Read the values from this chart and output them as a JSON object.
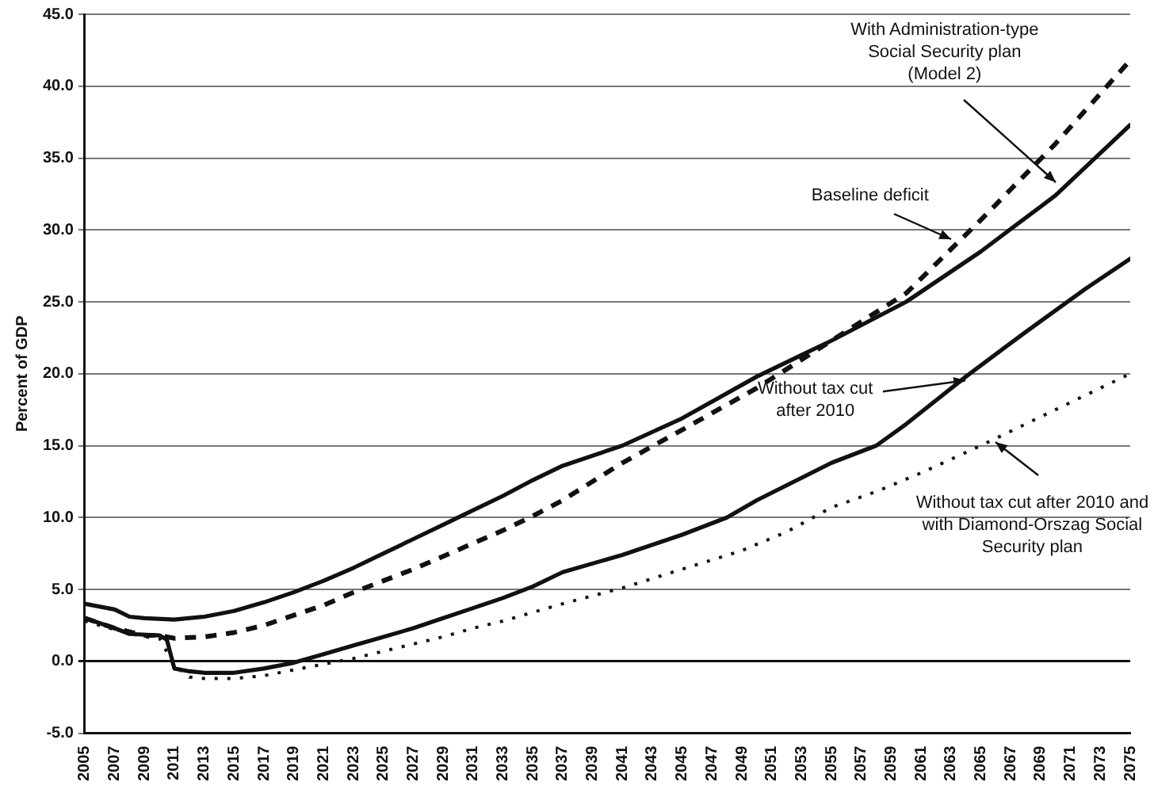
{
  "chart_data": {
    "type": "line",
    "ylabel": "Percent of GDP",
    "xlim": [
      2005,
      2075
    ],
    "xticks": [
      2005,
      2007,
      2009,
      2011,
      2013,
      2015,
      2017,
      2019,
      2021,
      2023,
      2025,
      2027,
      2029,
      2031,
      2033,
      2035,
      2037,
      2039,
      2041,
      2043,
      2045,
      2047,
      2049,
      2051,
      2053,
      2055,
      2057,
      2059,
      2061,
      2063,
      2065,
      2067,
      2069,
      2071,
      2073,
      2075
    ],
    "ylim": [
      -5,
      45
    ],
    "yticks": [
      {
        "value": -5,
        "label": "-5.0"
      },
      {
        "value": 0,
        "label": "0.0"
      },
      {
        "value": 5,
        "label": "5.0"
      },
      {
        "value": 10,
        "label": "10.0"
      },
      {
        "value": 15,
        "label": "15.0"
      },
      {
        "value": 20,
        "label": "20.0"
      },
      {
        "value": 25,
        "label": "25.0"
      },
      {
        "value": 30,
        "label": "30.0"
      },
      {
        "value": 35,
        "label": "35.0"
      },
      {
        "value": 40,
        "label": "40.0"
      },
      {
        "value": 45,
        "label": "45.0"
      }
    ],
    "grid": "y",
    "legend": false,
    "marker": "none",
    "series": [
      {
        "color": "#111111",
        "line_style": "solid",
        "x": [
          2005,
          2007,
          2008,
          2009,
          2011,
          2013,
          2015,
          2017,
          2019,
          2021,
          2023,
          2025,
          2027,
          2029,
          2031,
          2033,
          2035,
          2037,
          2041,
          2045,
          2050,
          2055,
          2060,
          2065,
          2070,
          2075
        ],
        "values": [
          4.0,
          3.6,
          3.1,
          3.0,
          2.9,
          3.1,
          3.5,
          4.1,
          4.8,
          5.6,
          6.5,
          7.5,
          8.5,
          9.5,
          10.5,
          11.5,
          12.6,
          13.6,
          15.0,
          16.9,
          19.8,
          22.3,
          25.0,
          28.5,
          32.4,
          37.3
        ]
      },
      {
        "color": "#111111",
        "line_style": "dashed",
        "x": [
          2005,
          2007,
          2009,
          2010,
          2011,
          2013,
          2015,
          2017,
          2019,
          2021,
          2023,
          2025,
          2027,
          2029,
          2031,
          2033,
          2035,
          2037,
          2041,
          2045,
          2050,
          2055,
          2060,
          2065,
          2070,
          2075
        ],
        "values": [
          3.0,
          2.3,
          1.8,
          1.8,
          1.6,
          1.7,
          2.0,
          2.5,
          3.2,
          3.9,
          4.8,
          5.6,
          6.4,
          7.3,
          8.2,
          9.1,
          10.1,
          11.2,
          13.8,
          16.1,
          19.0,
          22.3,
          25.6,
          30.7,
          36.0,
          41.8
        ]
      },
      {
        "color": "#111111",
        "line_style": "solid",
        "x": [
          2005,
          2007,
          2008,
          2010,
          2010.5,
          2011,
          2012,
          2013,
          2015,
          2017,
          2019,
          2021,
          2023,
          2025,
          2027,
          2029,
          2031,
          2033,
          2035,
          2037,
          2041,
          2045,
          2048,
          2050,
          2055,
          2058,
          2060,
          2064,
          2068,
          2072,
          2075
        ],
        "values": [
          3.0,
          2.3,
          1.9,
          1.8,
          1.5,
          -0.5,
          -0.7,
          -0.8,
          -0.8,
          -0.5,
          -0.1,
          0.5,
          1.1,
          1.7,
          2.3,
          3.0,
          3.7,
          4.4,
          5.2,
          6.2,
          7.4,
          8.8,
          10.0,
          11.2,
          13.8,
          15.0,
          16.5,
          19.8,
          22.9,
          25.9,
          28.0
        ]
      },
      {
        "color": "#111111",
        "line_style": "dotted",
        "x": [
          2005,
          2007,
          2009,
          2010,
          2011,
          2012,
          2013,
          2015,
          2017,
          2019,
          2021,
          2023,
          2025,
          2027,
          2029,
          2031,
          2033,
          2035,
          2037,
          2041,
          2049,
          2052,
          2055,
          2058,
          2061,
          2065,
          2068,
          2072,
          2075
        ],
        "values": [
          2.8,
          2.2,
          1.7,
          1.6,
          -0.3,
          -1.1,
          -1.2,
          -1.2,
          -1.0,
          -0.6,
          -0.2,
          0.2,
          0.7,
          1.2,
          1.7,
          2.3,
          2.8,
          3.4,
          4.0,
          5.1,
          7.7,
          9.0,
          10.7,
          11.8,
          13.1,
          15.0,
          16.5,
          18.5,
          20.0
        ]
      }
    ],
    "annotations": [
      {
        "text": "With Administration-type\nSocial Security plan\n(Model 2)",
        "x": 2070,
        "y": 33.3
      },
      {
        "text": "Baseline deficit",
        "x": 2063,
        "y": 29.3
      },
      {
        "text": "Without tax cut\nafter 2010",
        "x": 2064,
        "y": 19.5
      },
      {
        "text": "Without tax cut after 2010 and\nwith Diamond-Orszag Social\nSecurity plan",
        "x": 2066,
        "y": 15.3
      }
    ]
  }
}
